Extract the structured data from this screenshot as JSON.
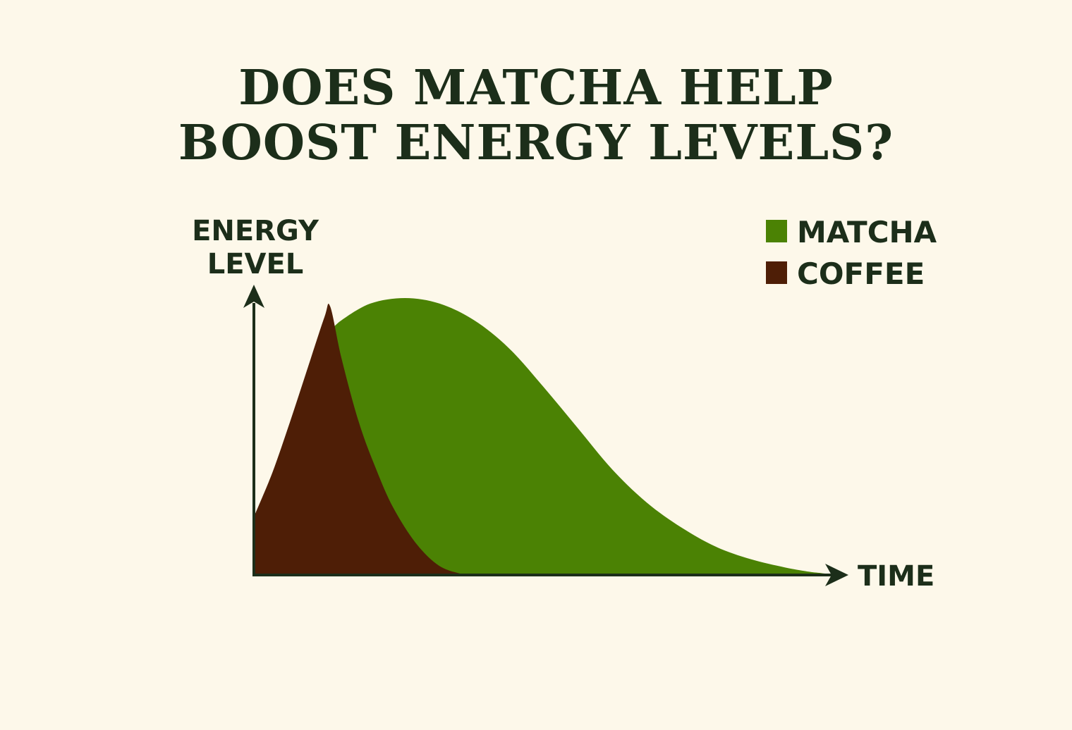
{
  "chart_data": {
    "type": "area",
    "title_lines": [
      "DOES MATCHA HELP",
      "BOOST ENERGY LEVELS?"
    ],
    "title": "DOES MATCHA HELP BOOST ENERGY LEVELS?",
    "ylabel_lines": [
      "ENERGY",
      "LEVEL"
    ],
    "ylabel": "ENERGY LEVEL",
    "xlabel": "TIME",
    "xlim": [
      0,
      100
    ],
    "ylim": [
      0,
      100
    ],
    "grid": false,
    "legend_placement": "top-right",
    "series": [
      {
        "name": "MATCHA",
        "color": "#4b8204",
        "x": [
          13,
          15,
          20,
          26,
          32,
          38,
          44,
          50,
          56,
          62,
          68,
          74,
          80,
          86,
          92,
          96,
          98,
          100
        ],
        "y": [
          88,
          92,
          98,
          100,
          98,
          92,
          82,
          68,
          53,
          38,
          26,
          17,
          10,
          5.5,
          2.5,
          1,
          0.5,
          0
        ]
      },
      {
        "name": "COFFEE",
        "color": "#4e1e06",
        "x": [
          0,
          3,
          6,
          9,
          12,
          13,
          15,
          18,
          21,
          24,
          28,
          32,
          36
        ],
        "y": [
          22,
          37,
          55,
          74,
          93,
          97,
          78,
          55,
          38,
          24,
          11,
          3,
          0
        ]
      }
    ]
  }
}
